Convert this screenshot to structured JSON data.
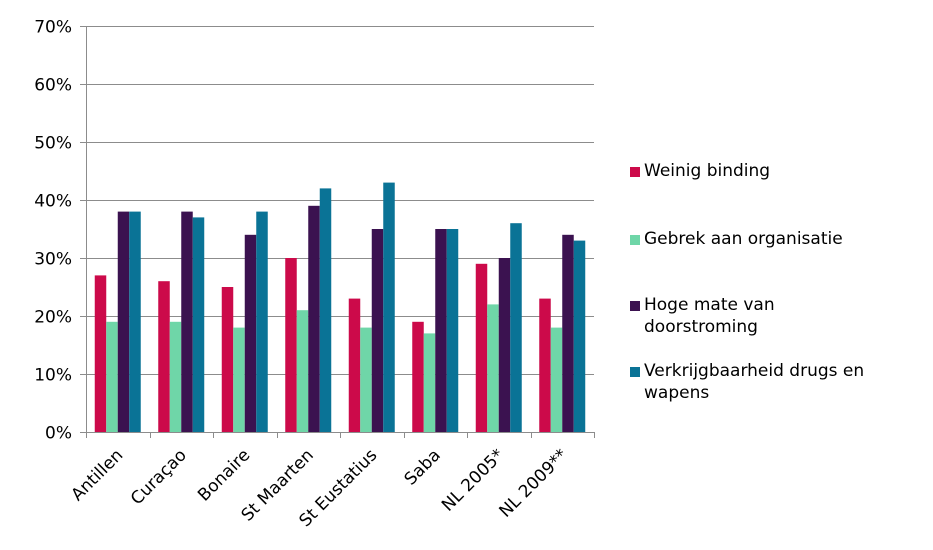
{
  "chart_data": {
    "type": "bar",
    "categories": [
      "Antillen",
      "Curaçao",
      "Bonaire",
      "St Maarten",
      "St Eustatius",
      "Saba",
      "NL 2005*",
      "NL 2009**"
    ],
    "series": [
      {
        "name": "Weinig binding",
        "color": "#cc0a4a",
        "values": [
          27,
          26,
          25,
          30,
          23,
          19,
          29,
          23
        ]
      },
      {
        "name": "Gebrek aan organisatie",
        "color": "#6fd6a8",
        "values": [
          19,
          19,
          18,
          21,
          18,
          17,
          22,
          18
        ]
      },
      {
        "name": "Hoge mate van doorstroming",
        "color": "#3b1250",
        "values": [
          38,
          38,
          34,
          39,
          35,
          35,
          30,
          34
        ]
      },
      {
        "name": "Verkrijgbaarheid drugs en wapens",
        "color": "#0a7396",
        "values": [
          38,
          37,
          38,
          42,
          43,
          35,
          36,
          33
        ]
      }
    ],
    "ylim": [
      0,
      70
    ],
    "yticks": [
      0,
      10,
      20,
      30,
      40,
      50,
      60,
      70
    ],
    "ytick_labels": [
      "0%",
      "10%",
      "20%",
      "30%",
      "40%",
      "50%",
      "60%",
      "70%"
    ],
    "grid": true,
    "legend_position": "right"
  },
  "legend": {
    "items": [
      {
        "line1": "Weinig binding",
        "line2": ""
      },
      {
        "line1": "Gebrek aan organisatie",
        "line2": ""
      },
      {
        "line1": "Hoge mate van",
        "line2": "doorstroming"
      },
      {
        "line1": "Verkrijgbaarheid drugs en",
        "line2": "wapens"
      }
    ]
  }
}
